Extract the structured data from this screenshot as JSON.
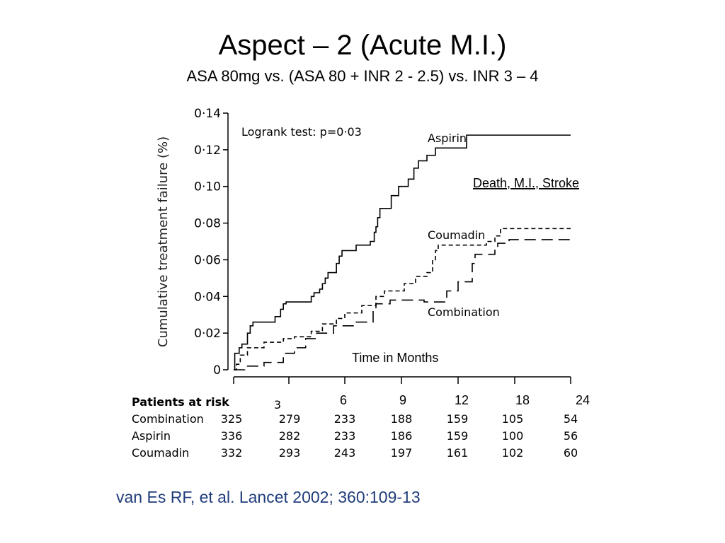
{
  "slide": {
    "title": "Aspect – 2 (Acute M.I.)",
    "subtitle": "ASA 80mg vs. (ASA 80 + INR 2 - 2.5) vs. INR 3 – 4",
    "citation": "van Es RF, et al. Lancet 2002; 360:109-13"
  },
  "chart_data": {
    "type": "line",
    "step": true,
    "ylabel": "Cumulative treatment failure (%)",
    "xlabel": "Time in Months",
    "outcome_label": "Death, M.I., Stroke",
    "test_label": "Logrank test: p=0·03",
    "ylim": [
      0,
      0.14
    ],
    "yticks": [
      0,
      0.02,
      0.04,
      0.06,
      0.08,
      0.1,
      0.12,
      0.14
    ],
    "ytick_labels": [
      "0",
      "0·02",
      "0·04",
      "0·06",
      "0·08",
      "0·10",
      "0·12",
      "0·14"
    ],
    "xtick_labels": [
      "3",
      "6",
      "9",
      "12",
      "18",
      "24"
    ],
    "xaxis_note": "x positions are tick indices: 0 = start, 1 = 3 mo, 2 = 6 mo, 3 = 9 mo, 4 = 12 mo, 5 = 18 mo, 6 = 24 mo",
    "series": [
      {
        "name": "Aspirin",
        "style": "solid",
        "points": [
          [
            0,
            0
          ],
          [
            0.02,
            0.009
          ],
          [
            0.1,
            0.012
          ],
          [
            0.15,
            0.014
          ],
          [
            0.25,
            0.02
          ],
          [
            0.3,
            0.024
          ],
          [
            0.35,
            0.026
          ],
          [
            0.75,
            0.029
          ],
          [
            0.85,
            0.033
          ],
          [
            0.9,
            0.036
          ],
          [
            0.95,
            0.037
          ],
          [
            1.4,
            0.04
          ],
          [
            1.45,
            0.042
          ],
          [
            1.55,
            0.044
          ],
          [
            1.6,
            0.047
          ],
          [
            1.65,
            0.05
          ],
          [
            1.7,
            0.053
          ],
          [
            1.85,
            0.058
          ],
          [
            1.9,
            0.062
          ],
          [
            1.95,
            0.065
          ],
          [
            2.2,
            0.068
          ],
          [
            2.45,
            0.07
          ],
          [
            2.52,
            0.075
          ],
          [
            2.55,
            0.078
          ],
          [
            2.58,
            0.083
          ],
          [
            2.62,
            0.088
          ],
          [
            2.82,
            0.095
          ],
          [
            2.95,
            0.1
          ],
          [
            3.12,
            0.104
          ],
          [
            3.22,
            0.11
          ],
          [
            3.3,
            0.114
          ],
          [
            3.45,
            0.117
          ],
          [
            3.6,
            0.121
          ],
          [
            4.15,
            0.128
          ],
          [
            5.0,
            0.128
          ],
          [
            6.0,
            0.128
          ]
        ],
        "end_label": "Aspirin"
      },
      {
        "name": "Coumadin",
        "style": "short-dash",
        "points": [
          [
            0,
            0
          ],
          [
            0.05,
            0.003
          ],
          [
            0.12,
            0.008
          ],
          [
            0.25,
            0.012
          ],
          [
            0.55,
            0.015
          ],
          [
            0.9,
            0.017
          ],
          [
            1.1,
            0.018
          ],
          [
            1.4,
            0.021
          ],
          [
            1.6,
            0.025
          ],
          [
            1.85,
            0.028
          ],
          [
            2.0,
            0.031
          ],
          [
            2.3,
            0.035
          ],
          [
            2.55,
            0.04
          ],
          [
            2.7,
            0.043
          ],
          [
            3.05,
            0.047
          ],
          [
            3.25,
            0.051
          ],
          [
            3.45,
            0.053
          ],
          [
            3.55,
            0.06
          ],
          [
            3.6,
            0.065
          ],
          [
            3.65,
            0.068
          ],
          [
            4.3,
            0.068
          ],
          [
            4.5,
            0.07
          ],
          [
            4.65,
            0.073
          ],
          [
            4.75,
            0.077
          ],
          [
            5.0,
            0.077
          ],
          [
            6.0,
            0.077
          ]
        ],
        "end_label": "Coumadin"
      },
      {
        "name": "Combination",
        "style": "long-dash",
        "points": [
          [
            0,
            0
          ],
          [
            0.2,
            0.002
          ],
          [
            0.55,
            0.004
          ],
          [
            0.9,
            0.009
          ],
          [
            1.1,
            0.012
          ],
          [
            1.3,
            0.017
          ],
          [
            1.5,
            0.02
          ],
          [
            1.8,
            0.024
          ],
          [
            2.2,
            0.026
          ],
          [
            2.5,
            0.033
          ],
          [
            2.55,
            0.036
          ],
          [
            2.8,
            0.038
          ],
          [
            3.4,
            0.037
          ],
          [
            3.8,
            0.043
          ],
          [
            4.0,
            0.048
          ],
          [
            4.25,
            0.058
          ],
          [
            4.3,
            0.063
          ],
          [
            4.65,
            0.066
          ],
          [
            4.7,
            0.069
          ],
          [
            4.9,
            0.071
          ],
          [
            5.0,
            0.071
          ],
          [
            6.0,
            0.071
          ]
        ],
        "end_label": "Combination"
      }
    ],
    "risk_table": {
      "header": "Patients at risk",
      "rows": [
        {
          "label": "Combination",
          "values": [
            "325",
            "279",
            "233",
            "188",
            "159",
            "105",
            "54"
          ]
        },
        {
          "label": "Aspirin",
          "values": [
            "336",
            "282",
            "233",
            "186",
            "159",
            "100",
            "56"
          ]
        },
        {
          "label": "Coumadin",
          "values": [
            "332",
            "293",
            "243",
            "197",
            "161",
            "102",
            "60"
          ]
        }
      ]
    },
    "colors": {
      "line": "#000000",
      "citation": "#1f3d7a"
    }
  }
}
